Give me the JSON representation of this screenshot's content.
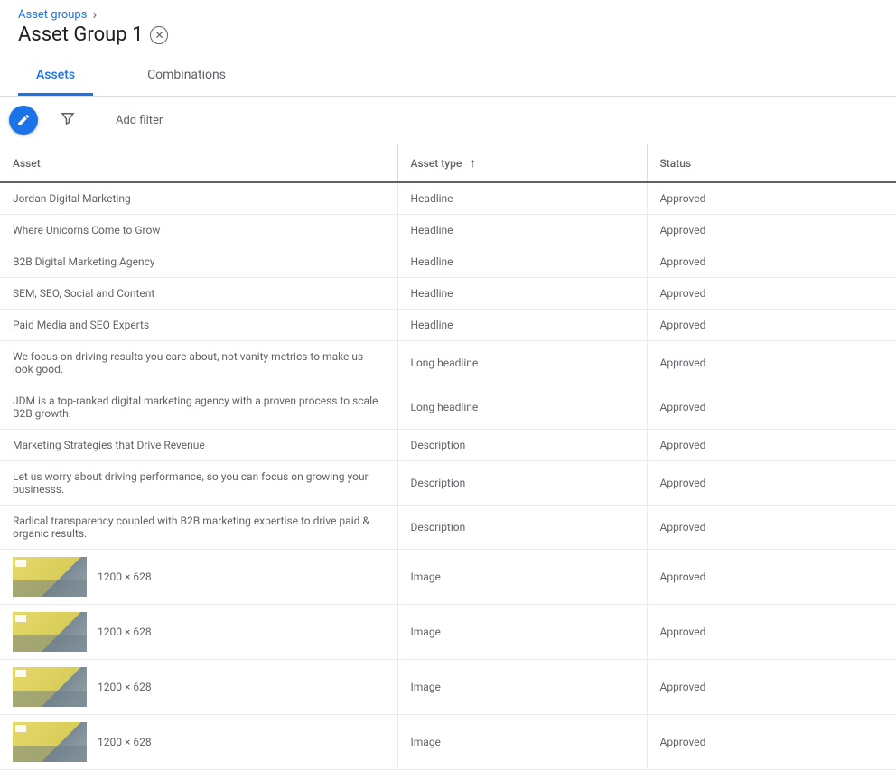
{
  "breadcrumb": {
    "parent": "Asset groups"
  },
  "title": "Asset Group 1",
  "tabs": {
    "assets": "Assets",
    "combinations": "Combinations",
    "active": "assets"
  },
  "toolbar": {
    "add_filter": "Add filter"
  },
  "columns": {
    "asset": "Asset",
    "type": "Asset type",
    "status": "Status"
  },
  "sort": {
    "column": "type",
    "dir": "asc"
  },
  "image_dimensions_label": "1200 × 628",
  "rows": [
    {
      "asset": "Jordan Digital Marketing",
      "type": "Headline",
      "status": "Approved",
      "kind": "text"
    },
    {
      "asset": "Where Unicorns Come to Grow",
      "type": "Headline",
      "status": "Approved",
      "kind": "text"
    },
    {
      "asset": "B2B Digital Marketing Agency",
      "type": "Headline",
      "status": "Approved",
      "kind": "text"
    },
    {
      "asset": "SEM, SEO, Social and Content",
      "type": "Headline",
      "status": "Approved",
      "kind": "text"
    },
    {
      "asset": "Paid Media and SEO Experts",
      "type": "Headline",
      "status": "Approved",
      "kind": "text"
    },
    {
      "asset": "We focus on driving results you care about, not vanity metrics to make us look good.",
      "type": "Long headline",
      "status": "Approved",
      "kind": "text"
    },
    {
      "asset": "JDM is a top-ranked digital marketing agency with a proven process to scale B2B growth.",
      "type": "Long headline",
      "status": "Approved",
      "kind": "text"
    },
    {
      "asset": "Marketing Strategies that Drive Revenue",
      "type": "Description",
      "status": "Approved",
      "kind": "text"
    },
    {
      "asset": "Let us worry about driving performance, so you can focus on growing your businesss.",
      "type": "Description",
      "status": "Approved",
      "kind": "text"
    },
    {
      "asset": "Radical transparency coupled with B2B marketing expertise to drive paid & organic results.",
      "type": "Description",
      "status": "Approved",
      "kind": "text"
    },
    {
      "asset": "1200 × 628",
      "type": "Image",
      "status": "Approved",
      "kind": "image"
    },
    {
      "asset": "1200 × 628",
      "type": "Image",
      "status": "Approved",
      "kind": "image"
    },
    {
      "asset": "1200 × 628",
      "type": "Image",
      "status": "Approved",
      "kind": "image"
    },
    {
      "asset": "1200 × 628",
      "type": "Image",
      "status": "Approved",
      "kind": "image"
    }
  ],
  "colors": {
    "link": "#1a73e8",
    "text_secondary": "#5f6368",
    "border": "#dadce0",
    "row_border": "#e8eaed"
  }
}
